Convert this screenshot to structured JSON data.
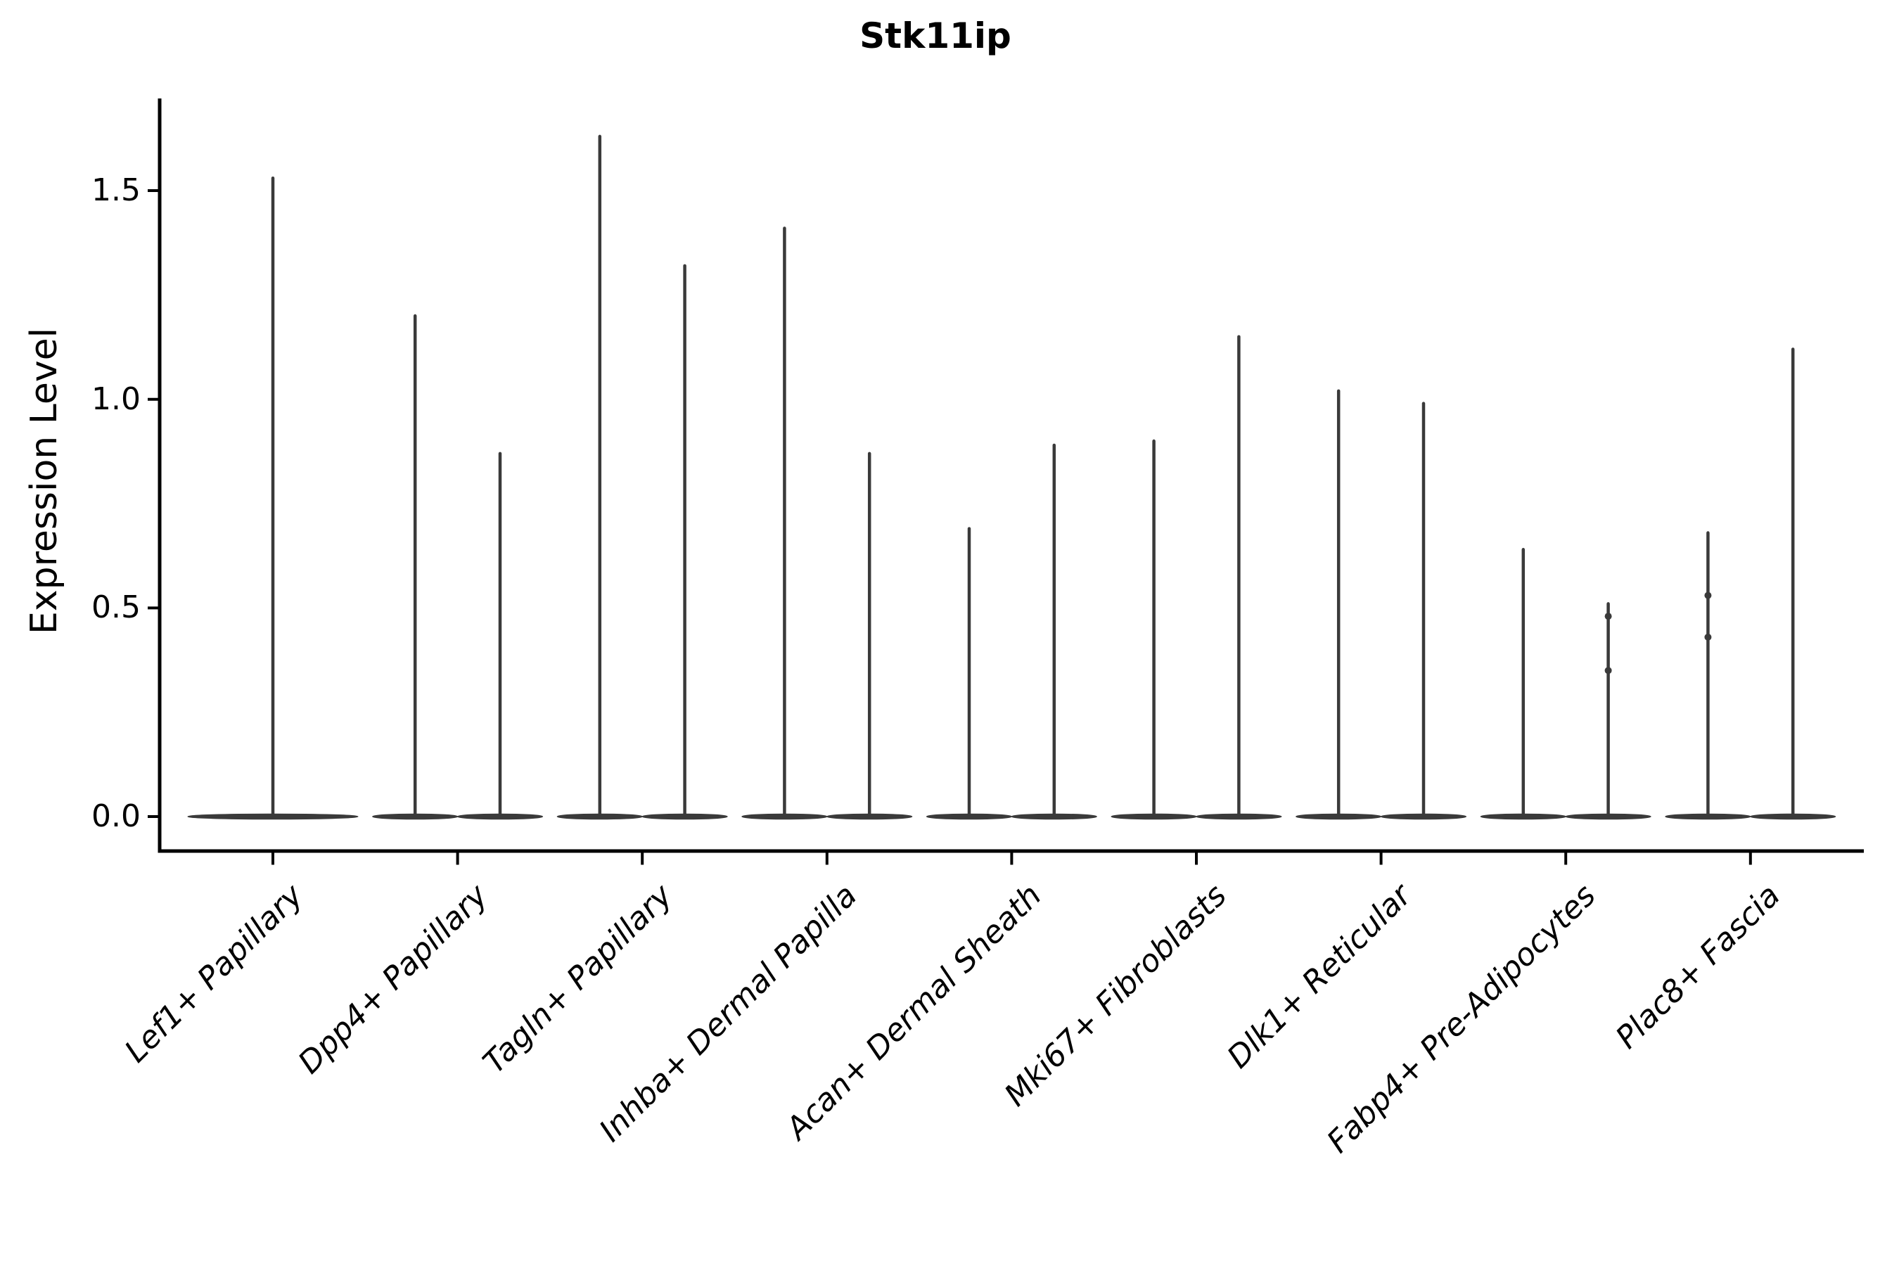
{
  "chart_data": {
    "type": "violin",
    "title": "Stk11ip",
    "ylabel": "Expression Level",
    "xlabel": "",
    "grid": false,
    "legend": "none",
    "ylim": [
      -0.08,
      1.72
    ],
    "yticks": [
      {
        "value": 0.0,
        "label": "0.0"
      },
      {
        "value": 0.5,
        "label": "0.5"
      },
      {
        "value": 1.0,
        "label": "1.0"
      },
      {
        "value": 1.5,
        "label": "1.5"
      }
    ],
    "violin_color": "#3a3a3a",
    "axis_color": "#000000",
    "categories": [
      {
        "label": "Lef1+ Papillary",
        "violins": [
          {
            "offset": 0.0,
            "width_frac": 0.92,
            "max": 1.53,
            "dots": []
          }
        ]
      },
      {
        "label": "Dpp4+ Papillary",
        "violins": [
          {
            "offset": -0.23,
            "width_frac": 0.46,
            "max": 1.2,
            "dots": []
          },
          {
            "offset": 0.23,
            "width_frac": 0.46,
            "max": 0.87,
            "dots": []
          }
        ]
      },
      {
        "label": "Tagln+ Papillary",
        "violins": [
          {
            "offset": -0.23,
            "width_frac": 0.46,
            "max": 1.63,
            "dots": []
          },
          {
            "offset": 0.23,
            "width_frac": 0.46,
            "max": 1.32,
            "dots": []
          }
        ]
      },
      {
        "label": "Inhba+ Dermal Papilla",
        "violins": [
          {
            "offset": -0.23,
            "width_frac": 0.46,
            "max": 1.41,
            "dots": []
          },
          {
            "offset": 0.23,
            "width_frac": 0.46,
            "max": 0.87,
            "dots": []
          }
        ]
      },
      {
        "label": "Acan+ Dermal Sheath",
        "violins": [
          {
            "offset": -0.23,
            "width_frac": 0.46,
            "max": 0.69,
            "dots": []
          },
          {
            "offset": 0.23,
            "width_frac": 0.46,
            "max": 0.89,
            "dots": []
          }
        ]
      },
      {
        "label": "Mki67+ Fibroblasts",
        "violins": [
          {
            "offset": -0.23,
            "width_frac": 0.46,
            "max": 0.9,
            "dots": []
          },
          {
            "offset": 0.23,
            "width_frac": 0.46,
            "max": 1.15,
            "dots": []
          }
        ]
      },
      {
        "label": "Dlk1+ Reticular",
        "violins": [
          {
            "offset": -0.23,
            "width_frac": 0.46,
            "max": 1.02,
            "dots": []
          },
          {
            "offset": 0.23,
            "width_frac": 0.46,
            "max": 0.99,
            "dots": []
          }
        ]
      },
      {
        "label": "Fabp4+ Pre-Adipocytes",
        "violins": [
          {
            "offset": -0.23,
            "width_frac": 0.46,
            "max": 0.64,
            "dots": []
          },
          {
            "offset": 0.23,
            "width_frac": 0.46,
            "max": 0.51,
            "dots": [
              0.48,
              0.35
            ]
          }
        ]
      },
      {
        "label": "Plac8+ Fascia",
        "violins": [
          {
            "offset": -0.23,
            "width_frac": 0.46,
            "max": 0.68,
            "dots": [
              0.53,
              0.43
            ]
          },
          {
            "offset": 0.23,
            "width_frac": 0.46,
            "max": 1.12,
            "dots": []
          }
        ]
      }
    ]
  }
}
